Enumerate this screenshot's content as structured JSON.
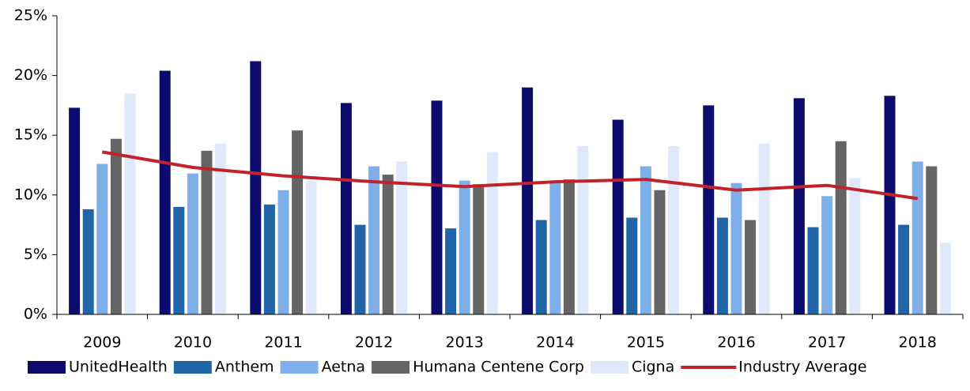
{
  "chart_data": {
    "type": "bar",
    "categories": [
      "2009",
      "2010",
      "2011",
      "2012",
      "2013",
      "2014",
      "2015",
      "2016",
      "2017",
      "2018"
    ],
    "series": [
      {
        "name": "UnitedHealth",
        "color": "#0c0c6e",
        "values": [
          17.3,
          20.4,
          21.2,
          17.7,
          17.9,
          19.0,
          16.3,
          17.5,
          18.1,
          18.3
        ]
      },
      {
        "name": "Anthem",
        "color": "#2065a8",
        "values": [
          8.8,
          9.0,
          9.2,
          7.5,
          7.2,
          7.9,
          8.1,
          8.1,
          7.3,
          7.5
        ]
      },
      {
        "name": "Aetna",
        "color": "#7fafe8",
        "values": [
          12.6,
          11.8,
          10.4,
          12.4,
          11.2,
          11.0,
          12.4,
          11.0,
          9.9,
          12.8
        ]
      },
      {
        "name": "Humana Centene Corp",
        "color": "#656565",
        "values": [
          14.7,
          13.7,
          15.4,
          11.7,
          10.9,
          11.3,
          10.4,
          7.9,
          14.5,
          12.4
        ]
      },
      {
        "name": "Cigna",
        "color": "#dfe9f9",
        "values": [
          18.5,
          14.3,
          11.2,
          12.8,
          13.6,
          14.1,
          14.1,
          14.3,
          11.4,
          6.0
        ]
      },
      {
        "name": "Industry Average",
        "type": "line",
        "color": "#c0232c",
        "values": [
          13.6,
          12.3,
          11.6,
          11.1,
          10.7,
          11.1,
          11.3,
          10.4,
          10.8,
          9.7
        ]
      }
    ],
    "ylim": [
      0,
      25
    ],
    "yticks": [
      {
        "value": 0,
        "label": "0%"
      },
      {
        "value": 5,
        "label": "5%"
      },
      {
        "value": 10,
        "label": "10%"
      },
      {
        "value": 15,
        "label": "15%"
      },
      {
        "value": 20,
        "label": "20%"
      },
      {
        "value": 25,
        "label": "25%"
      }
    ]
  }
}
